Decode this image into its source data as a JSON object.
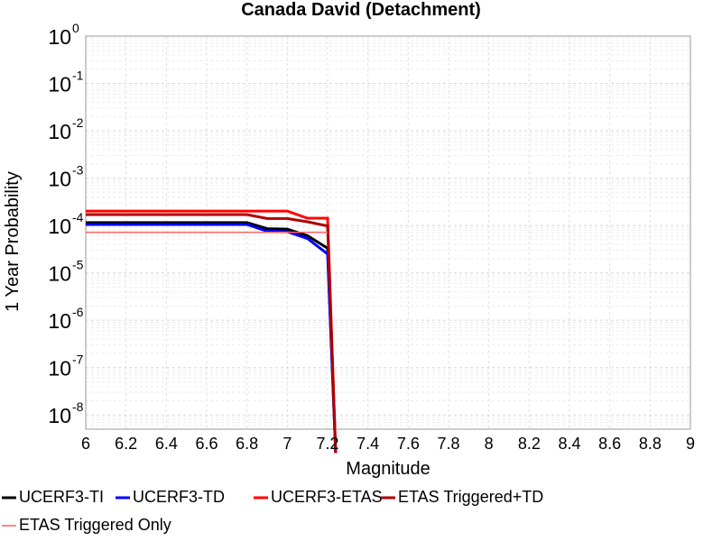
{
  "chart_data": {
    "type": "line",
    "title": "Canada David (Detachment)",
    "xlabel": "Magnitude",
    "ylabel": "1 Year Probability",
    "xlim": [
      6,
      9
    ],
    "ylim_log10": [
      -8.3,
      0
    ],
    "y_scale": "log",
    "grid": true,
    "legend_placement": "bottom",
    "x_ticks": [
      "6",
      "6.2",
      "6.4",
      "6.6",
      "6.8",
      "7",
      "7.2",
      "7.4",
      "7.6",
      "7.8",
      "8",
      "8.2",
      "8.4",
      "8.6",
      "8.8",
      "9"
    ],
    "y_ticks": [
      {
        "base": "10",
        "exp": "0"
      },
      {
        "base": "10",
        "exp": "-1"
      },
      {
        "base": "10",
        "exp": "-2"
      },
      {
        "base": "10",
        "exp": "-3"
      },
      {
        "base": "10",
        "exp": "-4"
      },
      {
        "base": "10",
        "exp": "-5"
      },
      {
        "base": "10",
        "exp": "-6"
      },
      {
        "base": "10",
        "exp": "-7"
      },
      {
        "base": "10",
        "exp": "-8"
      }
    ],
    "series": [
      {
        "name": "UCERF3-TI",
        "color": "#000000",
        "width": 3,
        "x": [
          6.0,
          6.8,
          6.9,
          7.0,
          7.1,
          7.2,
          7.24
        ],
        "y": [
          0.000115,
          0.000115,
          8.6e-05,
          8.4e-05,
          6.1e-05,
          3.3e-05,
          1e-09
        ]
      },
      {
        "name": "UCERF3-TD",
        "color": "#0000ff",
        "width": 3,
        "x": [
          6.0,
          6.8,
          6.9,
          7.0,
          7.1,
          7.2,
          7.24
        ],
        "y": [
          0.000105,
          0.000105,
          7.6e-05,
          7.4e-05,
          5.3e-05,
          2.5e-05,
          1e-09
        ]
      },
      {
        "name": "UCERF3-ETAS",
        "color": "#ff0000",
        "width": 3,
        "x": [
          6.0,
          6.9,
          7.0,
          7.1,
          7.2,
          7.2,
          7.24
        ],
        "y": [
          0.000202,
          0.000202,
          0.000202,
          0.000143,
          0.000143,
          0.000143,
          1e-09
        ]
      },
      {
        "name": "ETAS Triggered+TD",
        "color": "#b00000",
        "width": 3,
        "x": [
          6.0,
          6.8,
          6.9,
          7.0,
          7.1,
          7.2,
          7.24
        ],
        "y": [
          0.00017,
          0.00017,
          0.00014,
          0.00014,
          0.00012,
          9.8e-05,
          1e-09
        ]
      },
      {
        "name": "ETAS Triggered Only",
        "color": "#ff6060",
        "width": 1.5,
        "x": [
          6.0,
          7.2,
          7.2
        ],
        "y": [
          7.2e-05,
          7.2e-05,
          7.2e-05
        ]
      }
    ]
  }
}
